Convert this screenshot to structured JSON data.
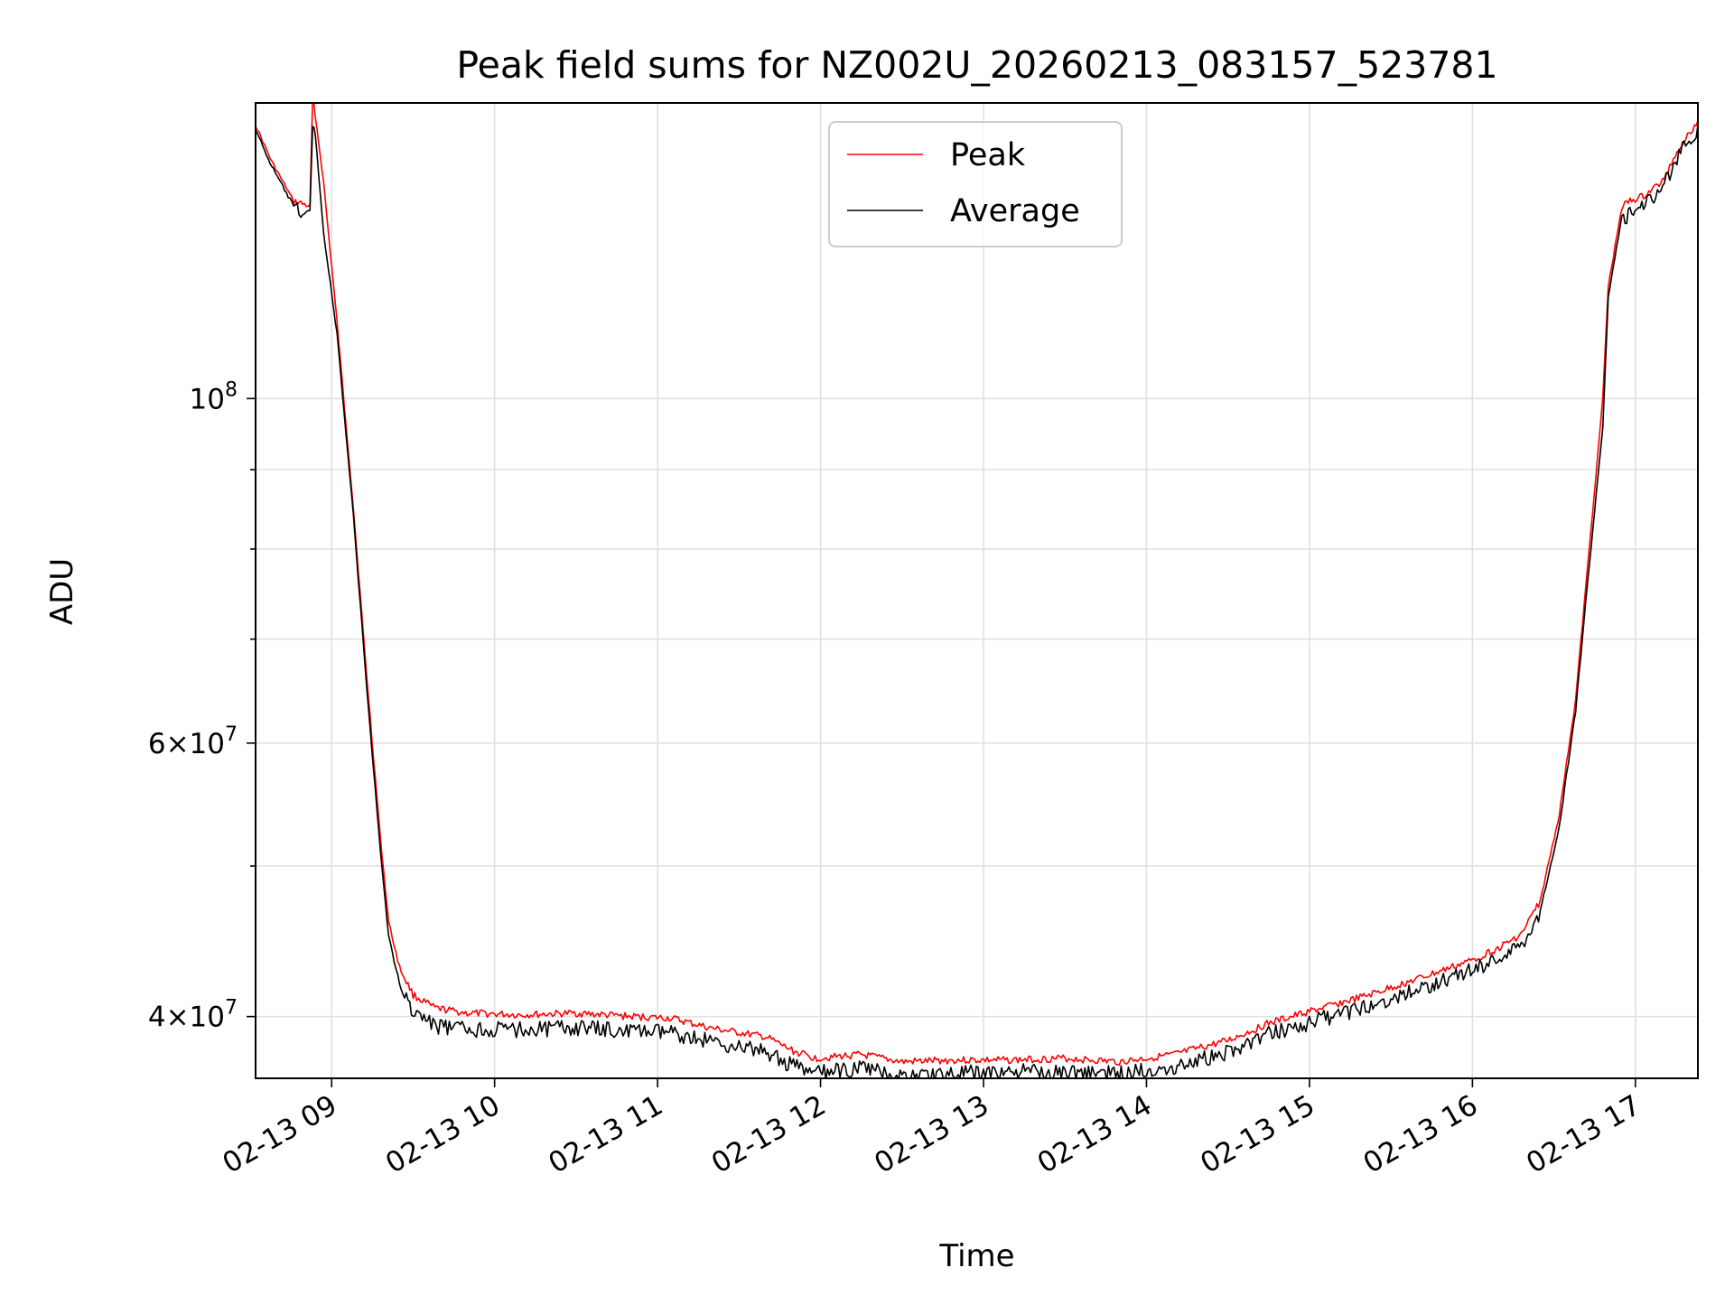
{
  "chart_data": {
    "type": "line",
    "title": "Peak field sums for NZ002U_20260213_083157_523781",
    "xlabel": "Time",
    "ylabel": "ADU",
    "yscale": "log",
    "grid": true,
    "legend_placement": "upper-center",
    "x_tick_labels": [
      "02-13 09",
      "02-13 10",
      "02-13 11",
      "02-13 12",
      "02-13 13",
      "02-13 14",
      "02-13 15",
      "02-13 16",
      "02-13 17"
    ],
    "y_tick_labels": [
      {
        "value": 100000000,
        "base": "10",
        "exp": "8",
        "mantissa": ""
      },
      {
        "value": 60000000,
        "base": "10",
        "exp": "7",
        "mantissa": "6×"
      },
      {
        "value": 40000000,
        "base": "10",
        "exp": "7",
        "mantissa": "4×"
      }
    ],
    "xlim": [
      "2026-02-13 08:32",
      "2026-02-13 17:23"
    ],
    "ylim": [
      36500000,
      155000000
    ],
    "series": [
      {
        "name": "Peak",
        "color": "#ff0000",
        "x": [
          "2026-02-13 08:32",
          "2026-02-13 08:38",
          "2026-02-13 08:46",
          "2026-02-13 08:52",
          "2026-02-13 08:53",
          "2026-02-13 08:54",
          "2026-02-13 08:57",
          "2026-02-13 09:02",
          "2026-02-13 09:08",
          "2026-02-13 09:13",
          "2026-02-13 09:18",
          "2026-02-13 09:21",
          "2026-02-13 09:25",
          "2026-02-13 09:30",
          "2026-02-13 09:38",
          "2026-02-13 09:50",
          "2026-02-13 10:10",
          "2026-02-13 10:30",
          "2026-02-13 10:50",
          "2026-02-13 11:05",
          "2026-02-13 11:20",
          "2026-02-13 11:40",
          "2026-02-13 11:50",
          "2026-02-13 11:58",
          "2026-02-13 12:15",
          "2026-02-13 12:30",
          "2026-02-13 12:50",
          "2026-02-13 13:10",
          "2026-02-13 13:30",
          "2026-02-13 13:50",
          "2026-02-13 14:10",
          "2026-02-13 14:30",
          "2026-02-13 14:45",
          "2026-02-13 15:00",
          "2026-02-13 15:20",
          "2026-02-13 15:40",
          "2026-02-13 16:00",
          "2026-02-13 16:10",
          "2026-02-13 16:18",
          "2026-02-13 16:25",
          "2026-02-13 16:32",
          "2026-02-13 16:38",
          "2026-02-13 16:43",
          "2026-02-13 16:48",
          "2026-02-13 16:50",
          "2026-02-13 16:55",
          "2026-02-13 16:58",
          "2026-02-13 17:03",
          "2026-02-13 17:10",
          "2026-02-13 17:16",
          "2026-02-13 17:23"
        ],
        "y": [
          150000000,
          142000000,
          134000000,
          133000000,
          156000000,
          152000000,
          138000000,
          112000000,
          85000000,
          66000000,
          52000000,
          46000000,
          43000000,
          41300000,
          40500000,
          40200000,
          40100000,
          40200000,
          40000000,
          39900000,
          39300000,
          38800000,
          38000000,
          37600000,
          37800000,
          37400000,
          37500000,
          37500000,
          37600000,
          37400000,
          37800000,
          38600000,
          39600000,
          40300000,
          41200000,
          42300000,
          43500000,
          44300000,
          45200000,
          47500000,
          54000000,
          64000000,
          80000000,
          100000000,
          118000000,
          133000000,
          134000000,
          135000000,
          138000000,
          145000000,
          151000000
        ]
      },
      {
        "name": "Average",
        "color": "#000000",
        "x": [
          "2026-02-13 08:32",
          "2026-02-13 08:38",
          "2026-02-13 08:46",
          "2026-02-13 08:52",
          "2026-02-13 08:53",
          "2026-02-13 08:54",
          "2026-02-13 08:57",
          "2026-02-13 09:02",
          "2026-02-13 09:08",
          "2026-02-13 09:13",
          "2026-02-13 09:18",
          "2026-02-13 09:21",
          "2026-02-13 09:25",
          "2026-02-13 09:30",
          "2026-02-13 09:38",
          "2026-02-13 09:50",
          "2026-02-13 10:10",
          "2026-02-13 10:30",
          "2026-02-13 10:50",
          "2026-02-13 11:05",
          "2026-02-13 11:20",
          "2026-02-13 11:40",
          "2026-02-13 11:50",
          "2026-02-13 11:58",
          "2026-02-13 12:15",
          "2026-02-13 12:30",
          "2026-02-13 12:50",
          "2026-02-13 13:10",
          "2026-02-13 13:30",
          "2026-02-13 13:50",
          "2026-02-13 14:10",
          "2026-02-13 14:30",
          "2026-02-13 14:45",
          "2026-02-13 15:00",
          "2026-02-13 15:20",
          "2026-02-13 15:40",
          "2026-02-13 16:00",
          "2026-02-13 16:10",
          "2026-02-13 16:18",
          "2026-02-13 16:25",
          "2026-02-13 16:32",
          "2026-02-13 16:38",
          "2026-02-13 16:43",
          "2026-02-13 16:48",
          "2026-02-13 16:50",
          "2026-02-13 16:55",
          "2026-02-13 16:58",
          "2026-02-13 17:03",
          "2026-02-13 17:10",
          "2026-02-13 17:16",
          "2026-02-13 17:23"
        ],
        "y": [
          149000000,
          141000000,
          133000000,
          132000000,
          150000000,
          148000000,
          128000000,
          110000000,
          84000000,
          65000000,
          51000000,
          45000000,
          42000000,
          40500000,
          39600000,
          39400000,
          39400000,
          39500000,
          39300000,
          39200000,
          38700000,
          38100000,
          37300000,
          36900000,
          37200000,
          36800000,
          36900000,
          37000000,
          37000000,
          36900000,
          37300000,
          38100000,
          39100000,
          39800000,
          40700000,
          41800000,
          43000000,
          43800000,
          44600000,
          46800000,
          53000000,
          63000000,
          78000000,
          96000000,
          116000000,
          131000000,
          132000000,
          134000000,
          137000000,
          144000000,
          150000000
        ]
      }
    ]
  }
}
